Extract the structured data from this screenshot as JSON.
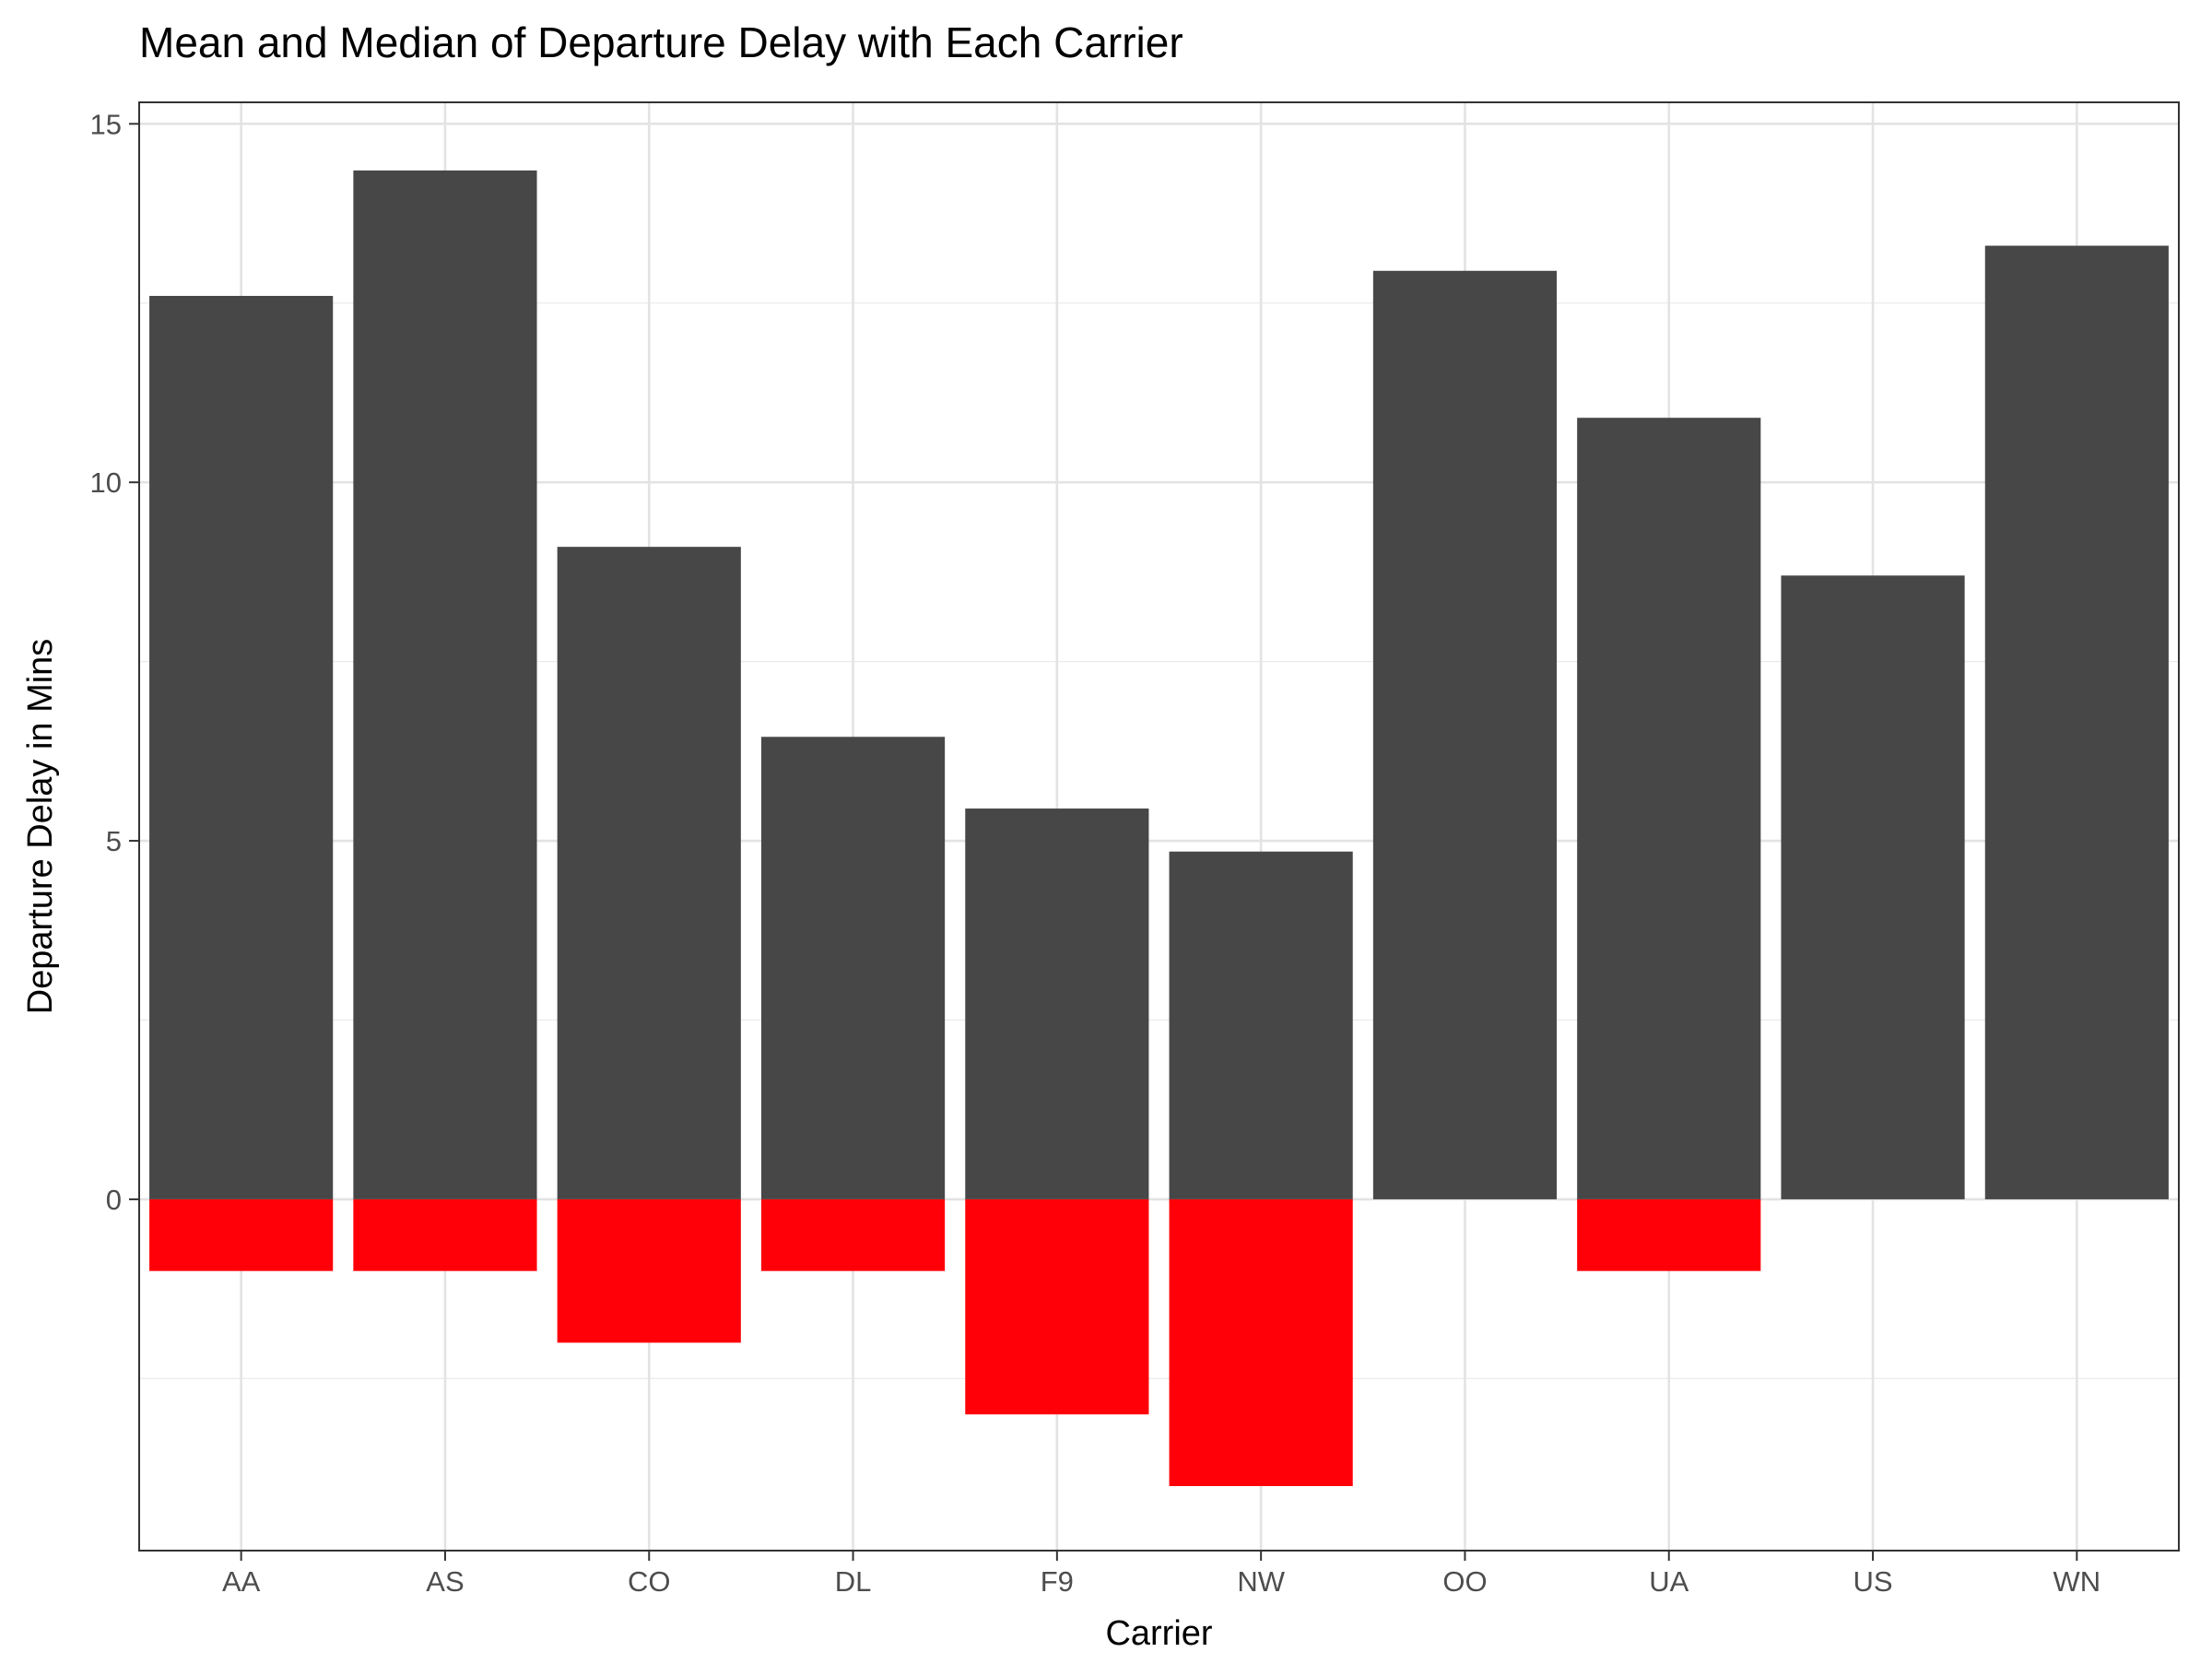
{
  "chart_data": {
    "type": "bar",
    "title": "Mean and Median of Departure Delay with Each Carrier",
    "xlabel": "Carrier",
    "ylabel": "Departure Delay in Mins",
    "categories": [
      "AA",
      "AS",
      "CO",
      "DL",
      "F9",
      "NW",
      "OO",
      "UA",
      "US",
      "WN"
    ],
    "series": [
      {
        "values": [
          12.6,
          14.35,
          9.1,
          6.45,
          5.45,
          4.85,
          12.95,
          10.9,
          8.7,
          13.3
        ],
        "color": "#474747"
      },
      {
        "values": [
          -1,
          -1,
          -2,
          -1,
          -3,
          -4,
          0,
          -1,
          0,
          0
        ],
        "color": "#ff0008"
      }
    ],
    "ylim": [
      -4.9,
      15.3
    ],
    "yticks": [
      0,
      5,
      10,
      15
    ],
    "ytick_labels": [
      "0",
      "5",
      "10",
      "15"
    ],
    "grid": true,
    "theme": "bw"
  }
}
